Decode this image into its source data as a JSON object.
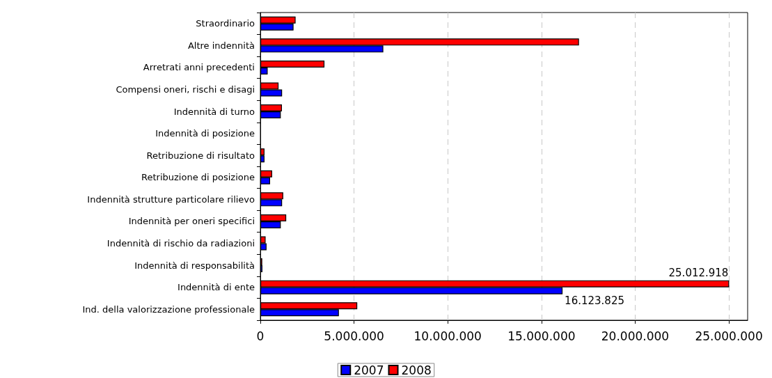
{
  "chart_data": {
    "type": "bar",
    "orientation": "horizontal",
    "categories": [
      "Straordinario",
      "Altre indennità",
      "Arretrati anni precedenti",
      "Compensi oneri, rischi e disagi",
      "Indennità di turno",
      "Indennità di posizione",
      "Retribuzione di risultato",
      "Retribuzione di posizione",
      "Indennità strutture particolare rilievo",
      "Indennità per oneri specifici",
      "Indennità di rischio da radiazioni",
      "Indennità di responsabilità",
      "Indennità di ente",
      "Ind. della valorizzazione professionale"
    ],
    "series": [
      {
        "name": "2007",
        "color": "#0000ff",
        "values": [
          1770000,
          6560000,
          390000,
          1160000,
          1090000,
          0,
          220000,
          520000,
          1160000,
          1090000,
          330000,
          110000,
          16123825,
          4190000
        ],
        "value_labels": [
          null,
          null,
          null,
          null,
          null,
          null,
          null,
          null,
          null,
          null,
          null,
          null,
          "16.123.825",
          null
        ]
      },
      {
        "name": "2008",
        "color": "#ff0000",
        "values": [
          1880000,
          17000000,
          3420000,
          970000,
          1150000,
          0,
          220000,
          630000,
          1220000,
          1380000,
          280000,
          100000,
          25012918,
          5170000
        ],
        "value_labels": [
          null,
          null,
          null,
          null,
          null,
          null,
          null,
          null,
          null,
          null,
          null,
          null,
          "25.012.918",
          null
        ]
      }
    ],
    "xlim": [
      0,
      26000000
    ],
    "xticks": [
      {
        "value": 0,
        "label": "0"
      },
      {
        "value": 5000000,
        "label": "5.000.000"
      },
      {
        "value": 10000000,
        "label": "10.000.000"
      },
      {
        "value": 15000000,
        "label": "15.000.000"
      },
      {
        "value": 20000000,
        "label": "20.000.000"
      },
      {
        "value": 25000000,
        "label": "25.000.000"
      }
    ],
    "grid": "x",
    "legend": "bottom"
  }
}
